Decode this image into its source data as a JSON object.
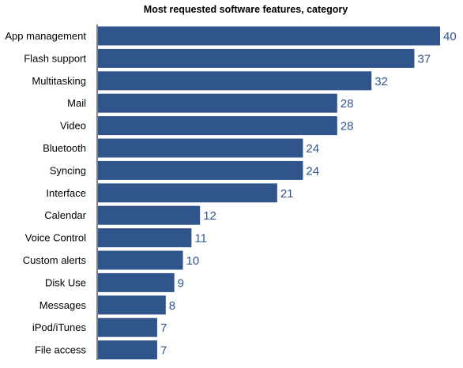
{
  "colors": {
    "bar": "#30558d",
    "value_text": "#30558d",
    "axis": "#000000"
  },
  "chart_data": {
    "type": "bar",
    "orientation": "horizontal",
    "title": "Most requested software features, category",
    "xlabel": "",
    "ylabel": "",
    "categories": [
      "App management",
      "Flash support",
      "Multitasking",
      "Mail",
      "Video",
      "Bluetooth",
      "Syncing",
      "Interface",
      "Calendar",
      "Voice Control",
      "Custom alerts",
      "Disk Use",
      "Messages",
      "iPod/iTunes",
      "File access"
    ],
    "values": [
      40,
      37,
      32,
      28,
      28,
      24,
      24,
      21,
      12,
      11,
      10,
      9,
      8,
      7,
      7
    ],
    "xlim": [
      0,
      40
    ],
    "grid": false,
    "legend": "none"
  }
}
